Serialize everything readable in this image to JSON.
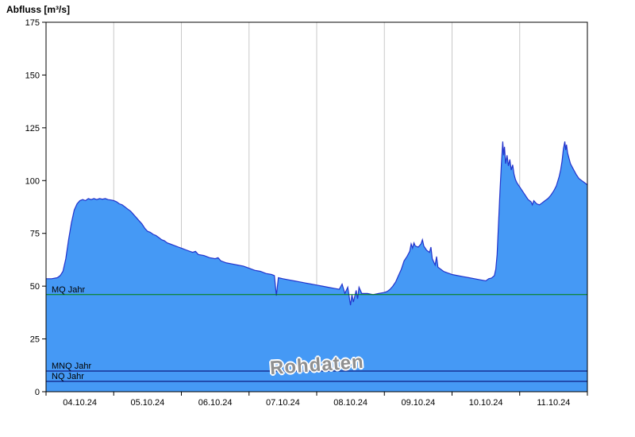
{
  "header": {
    "title": "Abfluss [m³/s]"
  },
  "watermark": "Rohdaten",
  "colors": {
    "area_fill": "#4599f5",
    "area_stroke": "#2233cc",
    "mq_line": "#008000",
    "low_flow_lines": "#000066",
    "grid": "#c8c8c8",
    "axis": "#000000",
    "background": "#ffffff"
  },
  "chart_data": {
    "type": "area",
    "title": "Abfluss [m³/s]",
    "ylabel": "Abfluss [m³/s]",
    "xlabel": "",
    "ylim": [
      0,
      175
    ],
    "y_ticks": [
      0,
      25,
      50,
      75,
      100,
      125,
      150,
      175
    ],
    "x_min": 0,
    "x_max": 192,
    "x_unit": "hours from 04.10.24 00:00",
    "x_day_labels": [
      "04.10.24",
      "05.10.24",
      "06.10.24",
      "07.10.24",
      "08.10.24",
      "09.10.24",
      "10.10.24",
      "11.10.24"
    ],
    "grid": "vertical lines at day boundaries",
    "grid_color": "#c8c8c8",
    "legend_position": "none",
    "reference_lines": [
      {
        "label": "MQ Jahr",
        "value": 46,
        "color": "#008000"
      },
      {
        "label": "MNQ Jahr",
        "value": 9.8,
        "color": "#000066"
      },
      {
        "label": "NQ Jahr",
        "value": 4.9,
        "color": "#000066"
      }
    ],
    "series": [
      {
        "name": "Abfluss Rohdaten",
        "fill": "#4599f5",
        "stroke": "#2233cc",
        "points": [
          [
            0,
            53.5
          ],
          [
            2,
            53.5
          ],
          [
            4,
            54
          ],
          [
            5,
            55
          ],
          [
            6,
            57
          ],
          [
            7,
            63
          ],
          [
            8,
            72
          ],
          [
            9,
            80
          ],
          [
            10,
            86
          ],
          [
            11,
            89
          ],
          [
            12,
            90.5
          ],
          [
            13,
            91
          ],
          [
            14,
            90.5
          ],
          [
            15,
            91.5
          ],
          [
            16,
            91
          ],
          [
            17,
            91.5
          ],
          [
            18,
            91
          ],
          [
            19,
            91.5
          ],
          [
            20,
            91.2
          ],
          [
            21,
            91.5
          ],
          [
            22,
            91
          ],
          [
            23,
            90.8
          ],
          [
            24,
            90.5
          ],
          [
            25,
            90
          ],
          [
            26,
            89
          ],
          [
            27,
            88.5
          ],
          [
            28,
            87.5
          ],
          [
            29,
            86.5
          ],
          [
            30,
            85.5
          ],
          [
            31,
            84
          ],
          [
            32,
            82.5
          ],
          [
            33,
            81
          ],
          [
            34,
            79.5
          ],
          [
            35,
            77.5
          ],
          [
            36,
            76
          ],
          [
            37,
            75.5
          ],
          [
            38,
            74.5
          ],
          [
            39,
            74
          ],
          [
            40,
            73
          ],
          [
            41,
            72
          ],
          [
            42,
            71.5
          ],
          [
            43,
            70.5
          ],
          [
            44,
            70
          ],
          [
            45,
            69.5
          ],
          [
            46,
            69
          ],
          [
            47,
            68.5
          ],
          [
            48,
            68
          ],
          [
            50,
            67
          ],
          [
            52,
            66
          ],
          [
            53,
            66.5
          ],
          [
            54,
            65
          ],
          [
            56,
            64.5
          ],
          [
            58,
            63.5
          ],
          [
            60,
            63
          ],
          [
            61,
            63.5
          ],
          [
            62,
            62
          ],
          [
            64,
            61
          ],
          [
            66,
            60.5
          ],
          [
            68,
            60
          ],
          [
            70,
            59.5
          ],
          [
            72,
            58.5
          ],
          [
            74,
            57.5
          ],
          [
            76,
            57
          ],
          [
            78,
            56
          ],
          [
            80,
            55.5
          ],
          [
            81,
            55
          ],
          [
            81.7,
            45.5
          ],
          [
            82.4,
            54
          ],
          [
            84,
            53.5
          ],
          [
            86,
            53
          ],
          [
            88,
            52.5
          ],
          [
            90,
            52
          ],
          [
            92,
            51.5
          ],
          [
            94,
            51
          ],
          [
            96,
            50.5
          ],
          [
            98,
            50
          ],
          [
            100,
            49.5
          ],
          [
            102,
            49
          ],
          [
            104,
            48.5
          ],
          [
            105,
            51
          ],
          [
            106,
            46.5
          ],
          [
            107,
            49.5
          ],
          [
            108,
            41
          ],
          [
            108.5,
            46
          ],
          [
            109,
            42.5
          ],
          [
            110,
            48
          ],
          [
            110.5,
            44
          ],
          [
            111,
            49.5
          ],
          [
            112,
            46.5
          ],
          [
            114,
            46.5
          ],
          [
            116,
            46
          ],
          [
            118,
            46.5
          ],
          [
            120,
            47
          ],
          [
            121,
            47.5
          ],
          [
            122,
            48.5
          ],
          [
            123,
            50
          ],
          [
            124,
            52
          ],
          [
            125,
            55
          ],
          [
            126,
            58
          ],
          [
            127,
            62
          ],
          [
            128,
            64
          ],
          [
            129,
            66.5
          ],
          [
            129.5,
            70
          ],
          [
            130,
            68
          ],
          [
            130.5,
            70.5
          ],
          [
            131,
            69
          ],
          [
            132,
            68.5
          ],
          [
            133,
            70
          ],
          [
            133.5,
            72
          ],
          [
            134,
            69
          ],
          [
            135,
            67
          ],
          [
            136,
            66
          ],
          [
            136.5,
            68.5
          ],
          [
            137,
            63
          ],
          [
            138,
            60
          ],
          [
            138.5,
            64
          ],
          [
            139,
            59
          ],
          [
            140,
            58
          ],
          [
            141,
            57
          ],
          [
            142,
            56.5
          ],
          [
            143,
            56
          ],
          [
            144,
            55.5
          ],
          [
            146,
            55
          ],
          [
            148,
            54.5
          ],
          [
            150,
            54
          ],
          [
            152,
            53.5
          ],
          [
            154,
            53
          ],
          [
            156,
            52.5
          ],
          [
            157,
            53.5
          ],
          [
            158,
            53.8
          ],
          [
            159,
            55
          ],
          [
            159.5,
            58
          ],
          [
            160,
            65
          ],
          [
            160.5,
            80
          ],
          [
            161,
            95
          ],
          [
            161.5,
            108
          ],
          [
            162,
            118.5
          ],
          [
            162.3,
            112
          ],
          [
            162.6,
            116
          ],
          [
            163,
            108
          ],
          [
            163.5,
            112
          ],
          [
            164,
            107
          ],
          [
            164.5,
            110
          ],
          [
            165,
            105
          ],
          [
            165.5,
            107.5
          ],
          [
            166,
            103
          ],
          [
            166.5,
            100.5
          ],
          [
            167,
            99
          ],
          [
            168,
            97
          ],
          [
            169,
            95
          ],
          [
            170,
            93
          ],
          [
            171,
            91
          ],
          [
            172,
            90
          ],
          [
            172.5,
            88.5
          ],
          [
            173,
            90.5
          ],
          [
            174,
            89
          ],
          [
            175,
            88.5
          ],
          [
            176,
            89.5
          ],
          [
            177,
            90.5
          ],
          [
            178,
            91.5
          ],
          [
            179,
            93
          ],
          [
            180,
            95
          ],
          [
            181,
            97.5
          ],
          [
            182,
            102
          ],
          [
            182.5,
            105
          ],
          [
            183,
            109
          ],
          [
            183.5,
            115
          ],
          [
            184,
            118.5
          ],
          [
            184.3,
            114.5
          ],
          [
            184.6,
            117
          ],
          [
            185,
            113
          ],
          [
            185.5,
            110.5
          ],
          [
            186,
            108
          ],
          [
            187,
            105.5
          ],
          [
            188,
            103
          ],
          [
            189,
            101
          ],
          [
            190,
            100
          ],
          [
            191,
            99
          ],
          [
            192,
            98
          ]
        ]
      }
    ]
  }
}
